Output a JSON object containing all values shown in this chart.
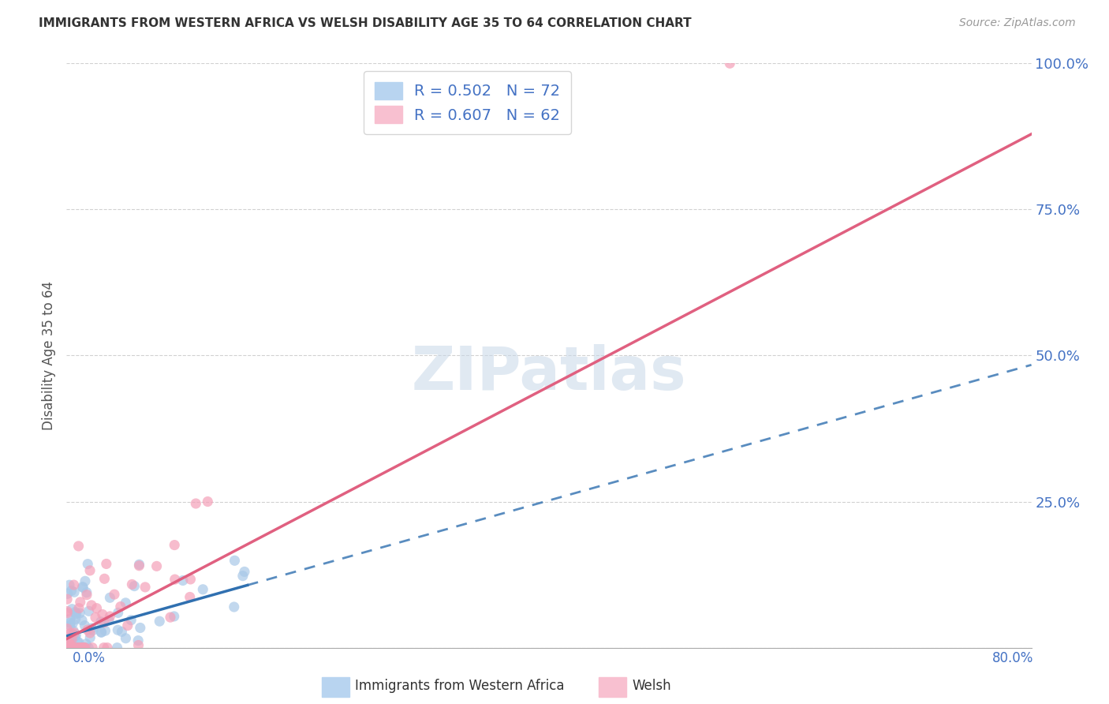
{
  "title": "IMMIGRANTS FROM WESTERN AFRICA VS WELSH DISABILITY AGE 35 TO 64 CORRELATION CHART",
  "source": "Source: ZipAtlas.com",
  "ylabel": "Disability Age 35 to 64",
  "legend_label_blue": "Immigrants from Western Africa",
  "legend_label_pink": "Welsh",
  "R_blue": 0.502,
  "N_blue": 72,
  "R_pink": 0.607,
  "N_pink": 62,
  "blue_color": "#a8c8e8",
  "pink_color": "#f4a0b8",
  "blue_line_color": "#3070b0",
  "pink_line_color": "#e06080",
  "xmin": 0.0,
  "xmax": 80.0,
  "ymin": 0.0,
  "ymax": 100.0,
  "ytick_vals": [
    0,
    25,
    50,
    75,
    100
  ],
  "ytick_labels": [
    "",
    "25.0%",
    "50.0%",
    "75.0%",
    "100.0%"
  ],
  "watermark": "ZIPatlas",
  "background_color": "#ffffff",
  "grid_color": "#cccccc",
  "blue_intercept": 2.0,
  "blue_slope": 0.58,
  "pink_intercept": 1.5,
  "pink_slope": 1.08,
  "blue_solid_xmax": 15.0,
  "xtick_positions": [
    0,
    16,
    32,
    48,
    64,
    80
  ]
}
